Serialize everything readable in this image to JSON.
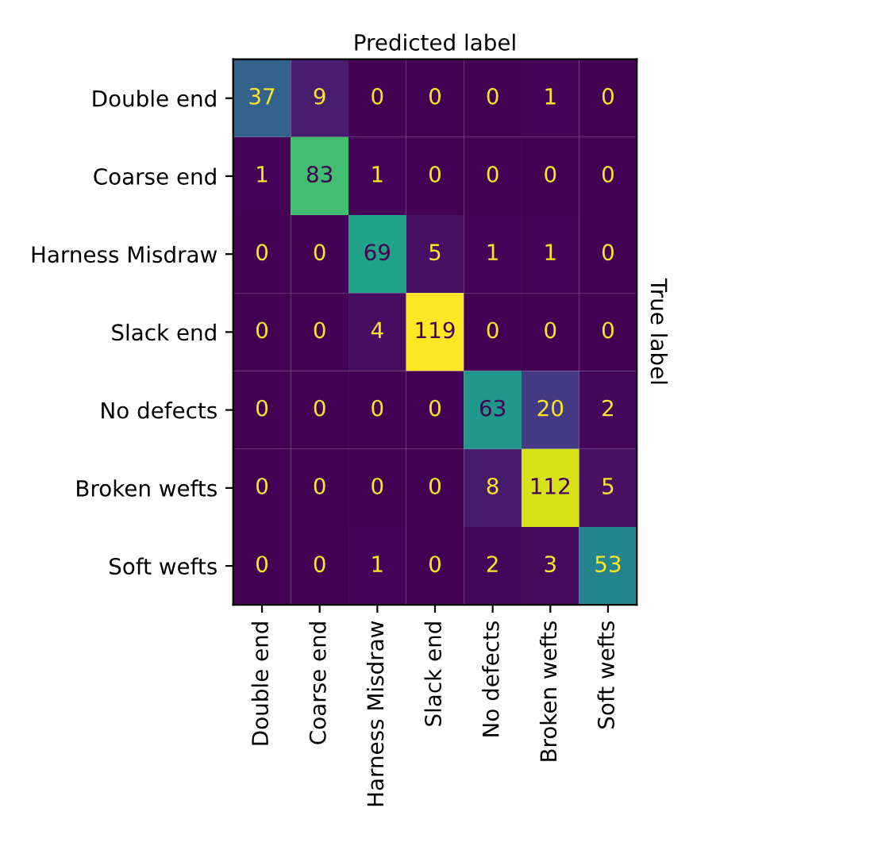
{
  "chart_data": {
    "type": "heatmap",
    "xlabel": "Predicted label",
    "ylabel": "True label",
    "categories": [
      "Double end",
      "Coarse end",
      "Harness Misdraw",
      "Slack end",
      "No defects",
      "Broken wefts",
      "Soft wefts"
    ],
    "y_categories": [
      "Double end",
      "Coarse end",
      "Harness Misdraw",
      "Slack end",
      "No defects",
      "Broken wefts",
      "Soft wefts"
    ],
    "cells": [
      [
        37,
        9,
        0,
        0,
        0,
        1,
        0
      ],
      [
        1,
        83,
        1,
        0,
        0,
        0,
        0
      ],
      [
        0,
        0,
        69,
        5,
        1,
        1,
        0
      ],
      [
        0,
        0,
        4,
        119,
        0,
        0,
        0
      ],
      [
        0,
        0,
        0,
        0,
        63,
        20,
        2
      ],
      [
        0,
        0,
        0,
        0,
        8,
        112,
        5
      ],
      [
        0,
        0,
        1,
        0,
        2,
        3,
        53
      ]
    ],
    "data_labels": true,
    "grid": false
  }
}
